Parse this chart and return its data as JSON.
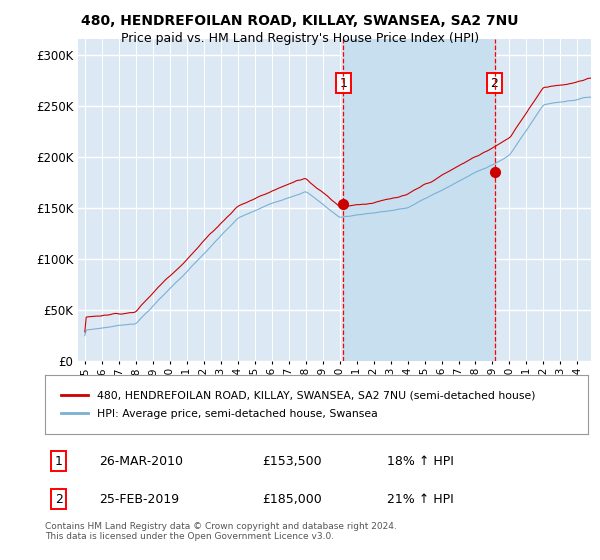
{
  "title1": "480, HENDREFOILAN ROAD, KILLAY, SWANSEA, SA2 7NU",
  "title2": "Price paid vs. HM Land Registry's House Price Index (HPI)",
  "ylabel_ticks": [
    "£0",
    "£50K",
    "£100K",
    "£150K",
    "£200K",
    "£250K",
    "£300K"
  ],
  "ytick_values": [
    0,
    50000,
    100000,
    150000,
    200000,
    250000,
    300000
  ],
  "ylim": [
    0,
    315000
  ],
  "xlim_start": 1994.6,
  "xlim_end": 2024.8,
  "background_color": "#dce9f5",
  "shade_color": "#c8dff0",
  "grid_color": "#ffffff",
  "red_line_color": "#cc0000",
  "blue_line_color": "#7ab0d4",
  "marker1_date": 2010.22,
  "marker1_price": 153500,
  "marker1_label": "1",
  "marker2_date": 2019.12,
  "marker2_price": 185000,
  "marker2_label": "2",
  "legend_red": "480, HENDREFOILAN ROAD, KILLAY, SWANSEA, SA2 7NU (semi-detached house)",
  "legend_blue": "HPI: Average price, semi-detached house, Swansea",
  "ann1_text": "26-MAR-2010",
  "ann1_price": "£153,500",
  "ann1_pct": "18% ↑ HPI",
  "ann2_text": "25-FEB-2019",
  "ann2_price": "£185,000",
  "ann2_pct": "21% ↑ HPI",
  "footer": "Contains HM Land Registry data © Crown copyright and database right 2024.\nThis data is licensed under the Open Government Licence v3.0.",
  "xtick_years": [
    1995,
    1996,
    1997,
    1998,
    1999,
    2000,
    2001,
    2002,
    2003,
    2004,
    2005,
    2006,
    2007,
    2008,
    2009,
    2010,
    2011,
    2012,
    2013,
    2014,
    2015,
    2016,
    2017,
    2018,
    2019,
    2020,
    2021,
    2022,
    2023,
    2024
  ]
}
